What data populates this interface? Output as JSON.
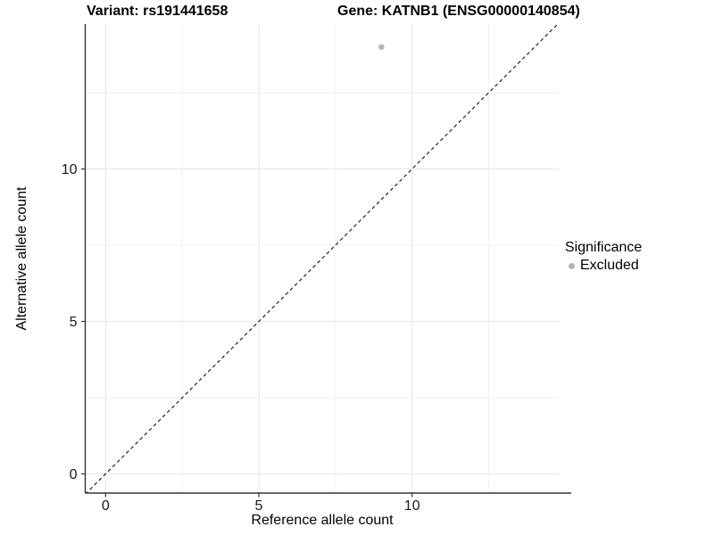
{
  "header": {
    "left_title": "Variant: rs191441658",
    "right_title": "Gene: KATNB1 (ENSG00000140854)"
  },
  "chart_data": {
    "type": "scatter",
    "title": "Variant: rs191441658   Gene: KATNB1 (ENSG00000140854)",
    "xlabel": "Reference allele count",
    "ylabel": "Alternative allele count",
    "x_axis": {
      "tick_values": [
        0,
        5,
        10
      ],
      "tick_labels": [
        "0",
        "5",
        "10"
      ],
      "range": [
        -0.66,
        14.8
      ]
    },
    "y_axis": {
      "tick_values": [
        0,
        5,
        10
      ],
      "tick_labels": [
        "0",
        "5",
        "10"
      ],
      "range": [
        -0.66,
        14.75
      ]
    },
    "grid": {
      "x_major": [
        0,
        5,
        10
      ],
      "x_minor": [
        2.5,
        7.5,
        12.5
      ],
      "y_major": [
        0,
        5,
        10
      ],
      "y_minor": [
        2.5,
        7.5,
        12.5
      ]
    },
    "points": [
      {
        "x": 9,
        "y": 14,
        "significance": "Excluded"
      }
    ],
    "reference_line": {
      "style": "dashed",
      "slope": 1,
      "intercept": 0,
      "color": "#111111"
    },
    "legend": {
      "title": "Significance",
      "position": "right",
      "items": [
        {
          "label": "Excluded",
          "color": "#b3b3b3"
        }
      ]
    },
    "colors": {
      "point": "#b3b3b3",
      "grid_major": "#e6e6e6",
      "grid_minor": "#f2f2f2",
      "axis_line": "#333333",
      "tick_mark": "#333333",
      "tick_text": "#1a1a1a",
      "background": "#ffffff"
    }
  }
}
